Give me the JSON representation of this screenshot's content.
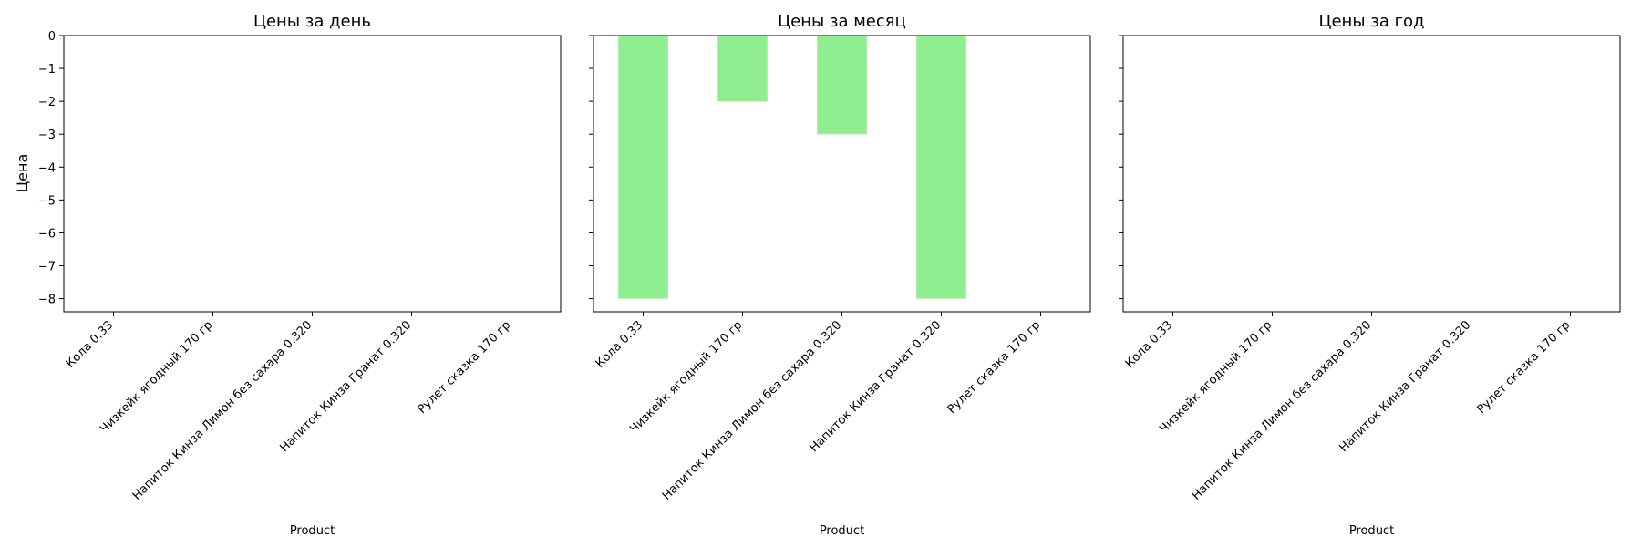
{
  "figure": {
    "bar_color": "#90ee90",
    "axis_color": "#000000",
    "background": "#ffffff",
    "ylabel": "Цена",
    "xlabel": "Product"
  },
  "chart_data": [
    {
      "type": "bar",
      "title": "Цены за день",
      "xlabel": "Product",
      "ylabel": "Цена",
      "categories": [
        "Кола 0.33",
        "Чизкейк ягодный 170 гр",
        "Напиток Кинза Лимон без сахара 0.320",
        "Напиток Кинза Гранат 0.320",
        "Рулет сказка 170 гр"
      ],
      "values": [
        0,
        0,
        0,
        0,
        0
      ],
      "ylim": [
        -8.4,
        0
      ],
      "yticks": [
        0,
        -1,
        -2,
        -3,
        -4,
        -5,
        -6,
        -7,
        -8
      ],
      "grid": false
    },
    {
      "type": "bar",
      "title": "Цены за месяц",
      "xlabel": "Product",
      "ylabel": "",
      "categories": [
        "Кола 0.33",
        "Чизкейк ягодный 170 гр",
        "Напиток Кинза Лимон без сахара 0.320",
        "Напиток Кинза Гранат 0.320",
        "Рулет сказка 170 гр"
      ],
      "values": [
        -8,
        -2,
        -3,
        -8,
        0
      ],
      "ylim": [
        -8.4,
        0
      ],
      "yticks": [
        0,
        -1,
        -2,
        -3,
        -4,
        -5,
        -6,
        -7,
        -8
      ],
      "grid": false
    },
    {
      "type": "bar",
      "title": "Цены за год",
      "xlabel": "Product",
      "ylabel": "",
      "categories": [
        "Кола 0.33",
        "Чизкейк ягодный 170 гр",
        "Напиток Кинза Лимон без сахара 0.320",
        "Напиток Кинза Гранат 0.320",
        "Рулет сказка 170 гр"
      ],
      "values": [
        0,
        0,
        0,
        0,
        0
      ],
      "ylim": [
        -8.4,
        0
      ],
      "yticks": [
        0,
        -1,
        -2,
        -3,
        -4,
        -5,
        -6,
        -7,
        -8
      ],
      "grid": false
    }
  ]
}
